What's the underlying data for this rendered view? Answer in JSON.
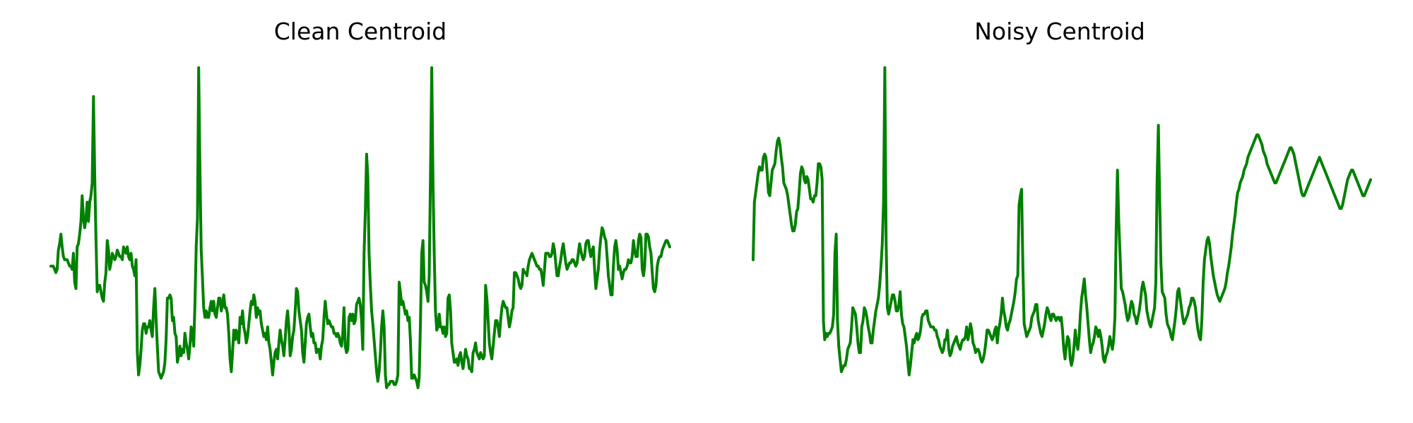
{
  "chart_data": [
    {
      "type": "line",
      "title": "Clean Centroid",
      "xlabel": "",
      "ylabel": "",
      "axes_visible": false,
      "grid": false,
      "legend": "none",
      "ylim": [
        0,
        1
      ],
      "series": [
        {
          "color": "#008000",
          "values": [
            0.38,
            0.38,
            0.38,
            0.37,
            0.36,
            0.37,
            0.43,
            0.45,
            0.48,
            0.44,
            0.41,
            0.4,
            0.4,
            0.4,
            0.39,
            0.38,
            0.38,
            0.37,
            0.42,
            0.33,
            0.31,
            0.44,
            0.45,
            0.48,
            0.52,
            0.6,
            0.53,
            0.5,
            0.53,
            0.58,
            0.52,
            0.58,
            0.6,
            0.64,
            0.91,
            0.66,
            0.47,
            0.3,
            0.32,
            0.32,
            0.3,
            0.28,
            0.27,
            0.33,
            0.36,
            0.46,
            0.43,
            0.37,
            0.39,
            0.42,
            0.41,
            0.4,
            0.41,
            0.43,
            0.42,
            0.41,
            0.41,
            0.4,
            0.44,
            0.43,
            0.42,
            0.44,
            0.41,
            0.4,
            0.42,
            0.38,
            0.37,
            0.35,
            0.4,
            0.11,
            0.04,
            0.07,
            0.12,
            0.18,
            0.2,
            0.2,
            0.17,
            0.19,
            0.19,
            0.21,
            0.18,
            0.16,
            0.25,
            0.31,
            0.21,
            0.13,
            0.05,
            0.04,
            0.03,
            0.04,
            0.05,
            0.08,
            0.15,
            0.28,
            0.28,
            0.29,
            0.28,
            0.21,
            0.22,
            0.17,
            0.16,
            0.08,
            0.1,
            0.13,
            0.1,
            0.12,
            0.11,
            0.17,
            0.14,
            0.12,
            0.09,
            0.13,
            0.19,
            0.17,
            0.13,
            0.26,
            0.44,
            0.53,
            1.0,
            0.68,
            0.43,
            0.34,
            0.25,
            0.22,
            0.24,
            0.22,
            0.22,
            0.25,
            0.27,
            0.24,
            0.27,
            0.23,
            0.22,
            0.25,
            0.28,
            0.28,
            0.24,
            0.26,
            0.29,
            0.25,
            0.25,
            0.23,
            0.17,
            0.09,
            0.05,
            0.11,
            0.18,
            0.15,
            0.18,
            0.16,
            0.14,
            0.22,
            0.2,
            0.24,
            0.19,
            0.17,
            0.14,
            0.16,
            0.2,
            0.24,
            0.27,
            0.26,
            0.29,
            0.27,
            0.22,
            0.25,
            0.23,
            0.24,
            0.2,
            0.18,
            0.16,
            0.17,
            0.15,
            0.19,
            0.14,
            0.12,
            0.08,
            0.04,
            0.08,
            0.11,
            0.12,
            0.09,
            0.14,
            0.18,
            0.15,
            0.13,
            0.1,
            0.15,
            0.21,
            0.24,
            0.19,
            0.1,
            0.12,
            0.16,
            0.18,
            0.24,
            0.31,
            0.3,
            0.24,
            0.21,
            0.18,
            0.11,
            0.08,
            0.14,
            0.2,
            0.22,
            0.23,
            0.19,
            0.16,
            0.17,
            0.14,
            0.14,
            0.11,
            0.12,
            0.12,
            0.09,
            0.13,
            0.15,
            0.22,
            0.27,
            0.23,
            0.2,
            0.21,
            0.2,
            0.19,
            0.19,
            0.17,
            0.17,
            0.16,
            0.17,
            0.16,
            0.14,
            0.13,
            0.17,
            0.25,
            0.13,
            0.11,
            0.12,
            0.22,
            0.23,
            0.21,
            0.23,
            0.2,
            0.21,
            0.26,
            0.27,
            0.28,
            0.26,
            0.21,
            0.12,
            0.42,
            0.55,
            0.73,
            0.66,
            0.42,
            0.32,
            0.24,
            0.2,
            0.15,
            0.1,
            0.05,
            0.02,
            0.05,
            0.11,
            0.19,
            0.24,
            0.19,
            0.04,
            0.0,
            0.01,
            0.01,
            0.02,
            0.02,
            0.02,
            0.01,
            0.01,
            0.02,
            0.04,
            0.33,
            0.3,
            0.26,
            0.27,
            0.25,
            0.23,
            0.24,
            0.21,
            0.22,
            0.15,
            0.03,
            0.03,
            0.04,
            0.03,
            0.02,
            0.0,
            0.03,
            0.2,
            0.42,
            0.46,
            0.33,
            0.32,
            0.3,
            0.27,
            0.35,
            0.66,
            1.0,
            0.64,
            0.42,
            0.24,
            0.18,
            0.19,
            0.23,
            0.19,
            0.19,
            0.17,
            0.19,
            0.16,
            0.17,
            0.28,
            0.29,
            0.24,
            0.14,
            0.11,
            0.08,
            0.08,
            0.09,
            0.07,
            0.1,
            0.11,
            0.08,
            0.06,
            0.09,
            0.12,
            0.1,
            0.09,
            0.06,
            0.06,
            0.05,
            0.11,
            0.12,
            0.14,
            0.11,
            0.1,
            0.09,
            0.11,
            0.1,
            0.09,
            0.1,
            0.32,
            0.28,
            0.21,
            0.14,
            0.11,
            0.09,
            0.13,
            0.17,
            0.21,
            0.21,
            0.19,
            0.16,
            0.21,
            0.25,
            0.27,
            0.26,
            0.25,
            0.25,
            0.22,
            0.19,
            0.21,
            0.24,
            0.25,
            0.36,
            0.36,
            0.35,
            0.34,
            0.32,
            0.31,
            0.32,
            0.37,
            0.36,
            0.36,
            0.35,
            0.38,
            0.4,
            0.41,
            0.42,
            0.41,
            0.4,
            0.39,
            0.38,
            0.38,
            0.37,
            0.37,
            0.35,
            0.32,
            0.37,
            0.42,
            0.42,
            0.42,
            0.41,
            0.41,
            0.42,
            0.45,
            0.43,
            0.39,
            0.35,
            0.35,
            0.38,
            0.4,
            0.43,
            0.45,
            0.42,
            0.39,
            0.37,
            0.38,
            0.39,
            0.39,
            0.4,
            0.4,
            0.39,
            0.38,
            0.39,
            0.42,
            0.45,
            0.43,
            0.41,
            0.4,
            0.41,
            0.45,
            0.46,
            0.46,
            0.43,
            0.41,
            0.43,
            0.44,
            0.37,
            0.31,
            0.34,
            0.37,
            0.43,
            0.47,
            0.5,
            0.49,
            0.47,
            0.46,
            0.41,
            0.35,
            0.32,
            0.29,
            0.29,
            0.38,
            0.44,
            0.46,
            0.43,
            0.37,
            0.38,
            0.36,
            0.34,
            0.36,
            0.37,
            0.37,
            0.38,
            0.4,
            0.39,
            0.39,
            0.41,
            0.46,
            0.43,
            0.41,
            0.41,
            0.46,
            0.48,
            0.47,
            0.37,
            0.35,
            0.38,
            0.48,
            0.48,
            0.47,
            0.44,
            0.42,
            0.36,
            0.31,
            0.3,
            0.32,
            0.38,
            0.4,
            0.41,
            0.41,
            0.43,
            0.44,
            0.45,
            0.46,
            0.46,
            0.45,
            0.44
          ]
        }
      ]
    },
    {
      "type": "line",
      "title": "Noisy Centroid",
      "xlabel": "",
      "ylabel": "",
      "axes_visible": false,
      "grid": false,
      "legend": "none",
      "ylim": [
        0,
        1
      ],
      "series": [
        {
          "color": "#008000",
          "values": [
            0.4,
            0.58,
            0.61,
            0.64,
            0.67,
            0.69,
            0.68,
            0.68,
            0.72,
            0.73,
            0.72,
            0.67,
            0.61,
            0.6,
            0.64,
            0.68,
            0.69,
            0.7,
            0.74,
            0.77,
            0.78,
            0.76,
            0.72,
            0.69,
            0.64,
            0.63,
            0.62,
            0.6,
            0.57,
            0.54,
            0.51,
            0.49,
            0.49,
            0.51,
            0.55,
            0.56,
            0.61,
            0.67,
            0.69,
            0.68,
            0.65,
            0.64,
            0.66,
            0.65,
            0.62,
            0.59,
            0.59,
            0.58,
            0.6,
            0.6,
            0.64,
            0.7,
            0.7,
            0.69,
            0.65,
            0.21,
            0.15,
            0.17,
            0.16,
            0.17,
            0.17,
            0.18,
            0.19,
            0.23,
            0.42,
            0.48,
            0.21,
            0.13,
            0.09,
            0.05,
            0.06,
            0.07,
            0.07,
            0.09,
            0.12,
            0.13,
            0.14,
            0.19,
            0.25,
            0.24,
            0.23,
            0.19,
            0.14,
            0.11,
            0.11,
            0.19,
            0.21,
            0.25,
            0.24,
            0.22,
            0.19,
            0.17,
            0.14,
            0.14,
            0.18,
            0.21,
            0.24,
            0.26,
            0.28,
            0.32,
            0.38,
            0.45,
            0.58,
            1.0,
            0.46,
            0.25,
            0.23,
            0.25,
            0.27,
            0.29,
            0.29,
            0.27,
            0.24,
            0.24,
            0.26,
            0.3,
            0.23,
            0.2,
            0.19,
            0.16,
            0.13,
            0.08,
            0.04,
            0.07,
            0.11,
            0.15,
            0.14,
            0.16,
            0.17,
            0.15,
            0.16,
            0.18,
            0.22,
            0.23,
            0.23,
            0.24,
            0.24,
            0.21,
            0.2,
            0.19,
            0.19,
            0.19,
            0.18,
            0.18,
            0.16,
            0.15,
            0.13,
            0.12,
            0.11,
            0.12,
            0.15,
            0.15,
            0.18,
            0.12,
            0.1,
            0.11,
            0.13,
            0.14,
            0.15,
            0.16,
            0.14,
            0.13,
            0.12,
            0.14,
            0.15,
            0.15,
            0.16,
            0.19,
            0.15,
            0.17,
            0.2,
            0.18,
            0.14,
            0.13,
            0.11,
            0.12,
            0.12,
            0.11,
            0.09,
            0.08,
            0.09,
            0.11,
            0.14,
            0.18,
            0.18,
            0.17,
            0.16,
            0.15,
            0.16,
            0.18,
            0.19,
            0.14,
            0.18,
            0.2,
            0.23,
            0.28,
            0.24,
            0.22,
            0.19,
            0.18,
            0.2,
            0.21,
            0.23,
            0.25,
            0.27,
            0.3,
            0.34,
            0.35,
            0.57,
            0.6,
            0.62,
            0.38,
            0.2,
            0.18,
            0.16,
            0.17,
            0.18,
            0.19,
            0.22,
            0.23,
            0.24,
            0.26,
            0.26,
            0.21,
            0.19,
            0.17,
            0.16,
            0.18,
            0.2,
            0.23,
            0.25,
            0.24,
            0.22,
            0.21,
            0.23,
            0.23,
            0.22,
            0.21,
            0.22,
            0.22,
            0.21,
            0.22,
            0.18,
            0.12,
            0.09,
            0.13,
            0.16,
            0.15,
            0.09,
            0.07,
            0.09,
            0.13,
            0.18,
            0.14,
            0.12,
            0.16,
            0.23,
            0.28,
            0.31,
            0.34,
            0.29,
            0.25,
            0.2,
            0.15,
            0.11,
            0.13,
            0.14,
            0.16,
            0.19,
            0.18,
            0.16,
            0.18,
            0.16,
            0.13,
            0.09,
            0.08,
            0.1,
            0.11,
            0.13,
            0.16,
            0.14,
            0.12,
            0.15,
            0.22,
            0.5,
            0.68,
            0.52,
            0.42,
            0.31,
            0.3,
            0.28,
            0.26,
            0.23,
            0.21,
            0.22,
            0.25,
            0.27,
            0.26,
            0.23,
            0.22,
            0.2,
            0.22,
            0.24,
            0.27,
            0.31,
            0.33,
            0.31,
            0.29,
            0.24,
            0.22,
            0.2,
            0.19,
            0.21,
            0.23,
            0.25,
            0.33,
            0.65,
            0.82,
            0.59,
            0.39,
            0.3,
            0.29,
            0.28,
            0.23,
            0.2,
            0.19,
            0.18,
            0.16,
            0.15,
            0.18,
            0.21,
            0.25,
            0.3,
            0.31,
            0.28,
            0.25,
            0.22,
            0.2,
            0.21,
            0.22,
            0.23,
            0.25,
            0.26,
            0.28,
            0.28,
            0.27,
            0.25,
            0.21,
            0.18,
            0.16,
            0.15,
            0.21,
            0.33,
            0.4,
            0.43,
            0.46,
            0.47,
            0.45,
            0.41,
            0.38,
            0.35,
            0.33,
            0.31,
            0.29,
            0.28,
            0.27,
            0.28,
            0.29,
            0.3,
            0.31,
            0.33,
            0.36,
            0.38,
            0.41,
            0.44,
            0.48,
            0.51,
            0.54,
            0.58,
            0.61,
            0.62,
            0.64,
            0.65,
            0.66,
            0.68,
            0.69,
            0.7,
            0.72,
            0.73,
            0.74,
            0.75,
            0.76,
            0.77,
            0.78,
            0.79,
            0.79,
            0.78,
            0.77,
            0.76,
            0.74,
            0.73,
            0.72,
            0.7,
            0.69,
            0.68,
            0.67,
            0.66,
            0.65,
            0.64,
            0.64,
            0.65,
            0.66,
            0.67,
            0.68,
            0.69,
            0.7,
            0.71,
            0.72,
            0.73,
            0.74,
            0.75,
            0.75,
            0.74,
            0.73,
            0.71,
            0.69,
            0.67,
            0.65,
            0.63,
            0.61,
            0.6,
            0.6,
            0.61,
            0.62,
            0.63,
            0.64,
            0.65,
            0.66,
            0.67,
            0.68,
            0.69,
            0.7,
            0.71,
            0.72,
            0.71,
            0.7,
            0.69,
            0.68,
            0.67,
            0.66,
            0.65,
            0.64,
            0.63,
            0.62,
            0.61,
            0.6,
            0.59,
            0.58,
            0.57,
            0.56,
            0.56,
            0.57,
            0.59,
            0.61,
            0.63,
            0.65,
            0.66,
            0.67,
            0.68,
            0.68,
            0.67,
            0.66,
            0.65,
            0.64,
            0.63,
            0.62,
            0.61,
            0.6,
            0.6,
            0.61,
            0.62,
            0.63,
            0.64,
            0.65
          ]
        }
      ]
    }
  ]
}
